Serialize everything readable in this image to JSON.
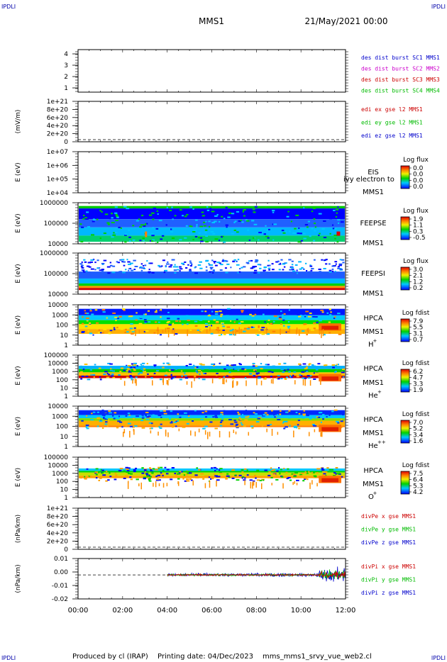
{
  "header": {
    "corner_tl": "IPDLI",
    "corner_tr": "IPDLI",
    "corner_bl": "IPDLI",
    "corner_br": "IPDLI",
    "spacecraft": "MMS1",
    "datetime": "21/May/2021 00:00"
  },
  "footer": {
    "produced_by": "Produced by cl (IRAP)",
    "printing_date": "Printing date: 04/Dec/2023",
    "filename": "mms_mms1_srvy_vue_web2.cl"
  },
  "colors": {
    "blue": "#0000cc",
    "magenta": "#cc00cc",
    "red": "#cc0000",
    "green": "#00bb00"
  },
  "chart_data": {
    "type": "multi-panel",
    "x_ticks": [
      "00:00",
      "02:00",
      "04:00",
      "06:00",
      "08:00",
      "10:00",
      "12:00"
    ],
    "xlim_hours": [
      0,
      12
    ],
    "panels": [
      {
        "id": "des",
        "type": "line",
        "yticks": [
          "4",
          "3",
          "2",
          "1"
        ],
        "legend": [
          {
            "text": "des dist burst SC1 MMS1",
            "color": "blue"
          },
          {
            "text": "des dist burst SC2 MMS2",
            "color": "magenta"
          },
          {
            "text": "des dist burst SC3 MMS3",
            "color": "red"
          },
          {
            "text": "des dist burst SC4 MMS4",
            "color": "green"
          }
        ]
      },
      {
        "id": "edi",
        "type": "line",
        "ylabel": "(mV/m)",
        "yticks": [
          "1e+21",
          "8e+20",
          "6e+20",
          "4e+20",
          "2e+20",
          "0"
        ],
        "legend": [
          {
            "text": "edi ex gse l2 MMS1",
            "color": "red"
          },
          {
            "text": "edi ey gse l2 MMS1",
            "color": "green"
          },
          {
            "text": "edi ez gse l2 MMS1",
            "color": "blue"
          }
        ]
      },
      {
        "id": "eis",
        "type": "heatmap",
        "ylabel": "E (eV)",
        "yticks": [
          "1e+07",
          "1e+06",
          "1e+05",
          "1e+04"
        ],
        "right_labels": [
          "EIS",
          "MMS1"
        ],
        "overlay_text": "ivy electron to",
        "cb_title": "Log flux",
        "cb_ticks": [
          "0.0",
          "0.0",
          "0.0",
          "0.0"
        ]
      },
      {
        "id": "feepse",
        "type": "heatmap",
        "ylabel": "E (eV)",
        "yticks": [
          "1000000",
          "100000",
          "10000"
        ],
        "right_labels": [
          "FEEPSE",
          "MMS1"
        ],
        "cb_title": "Log flux",
        "cb_ticks": [
          "1.9",
          "1.1",
          "0.3",
          "-0.5"
        ]
      },
      {
        "id": "feepsi",
        "type": "heatmap",
        "ylabel": "E (eV)",
        "yticks": [
          "1000000",
          "100000",
          "10000"
        ],
        "right_labels": [
          "FEEPSI",
          "MMS1"
        ],
        "cb_title": "Log flux",
        "cb_ticks": [
          "3.0",
          "2.1",
          "1.2",
          "0.2"
        ]
      },
      {
        "id": "hpca_h",
        "type": "heatmap",
        "ylabel": "E (eV)",
        "yticks": [
          "10000",
          "1000",
          "100",
          "10",
          "1"
        ],
        "right_labels": [
          "HPCA",
          "MMS1"
        ],
        "species": "H",
        "charge": "+",
        "cb_title": "Log fdist",
        "cb_ticks": [
          "7.9",
          "5.5",
          "3.1",
          "0.7"
        ]
      },
      {
        "id": "hpca_he",
        "type": "heatmap",
        "ylabel": "E (eV)",
        "yticks": [
          "100000",
          "10000",
          "1000",
          "100",
          "10",
          "1"
        ],
        "right_labels": [
          "HPCA",
          "MMS1"
        ],
        "species": "He",
        "charge": "+",
        "cb_title": "Log fdist",
        "cb_ticks": [
          "6.2",
          "4.7",
          "3.3",
          "1.9"
        ]
      },
      {
        "id": "hpca_hepp",
        "type": "heatmap",
        "ylabel": "E (eV)",
        "yticks": [
          "10000",
          "1000",
          "100",
          "10",
          "1"
        ],
        "right_labels": [
          "HPCA",
          "MMS1"
        ],
        "species": "He",
        "charge": "++",
        "cb_title": "Log fdist",
        "cb_ticks": [
          "7.0",
          "5.2",
          "3.4",
          "1.6"
        ]
      },
      {
        "id": "hpca_o",
        "type": "heatmap",
        "ylabel": "E (eV)",
        "yticks": [
          "100000",
          "10000",
          "1000",
          "100",
          "10",
          "1"
        ],
        "right_labels": [
          "HPCA",
          "MMS1"
        ],
        "species": "O",
        "charge": "+",
        "cb_title": "Log fdist",
        "cb_ticks": [
          "7.5",
          "6.4",
          "5.3",
          "4.2"
        ]
      },
      {
        "id": "divpe",
        "type": "line",
        "ylabel": "(nPa/km)",
        "yticks": [
          "1e+21",
          "8e+20",
          "6e+20",
          "4e+20",
          "2e+20",
          "0"
        ],
        "legend": [
          {
            "text": "divPe x gse MMS1",
            "color": "red"
          },
          {
            "text": "divPe y gse MMS1",
            "color": "green"
          },
          {
            "text": "divPe z gse MMS1",
            "color": "blue"
          }
        ]
      },
      {
        "id": "divpi",
        "type": "line",
        "ylabel": "(nPa/km)",
        "yticks": [
          "0.01",
          "0.00",
          "-0.01",
          "-0.02"
        ],
        "ylim": [
          -0.022,
          0.015
        ],
        "data_start_hour": 4.0,
        "legend": [
          {
            "text": "divPi x gse MMS1",
            "color": "red"
          },
          {
            "text": "divPi y gse MMS1",
            "color": "green"
          },
          {
            "text": "divPi z gse MMS1",
            "color": "blue"
          }
        ]
      }
    ]
  }
}
